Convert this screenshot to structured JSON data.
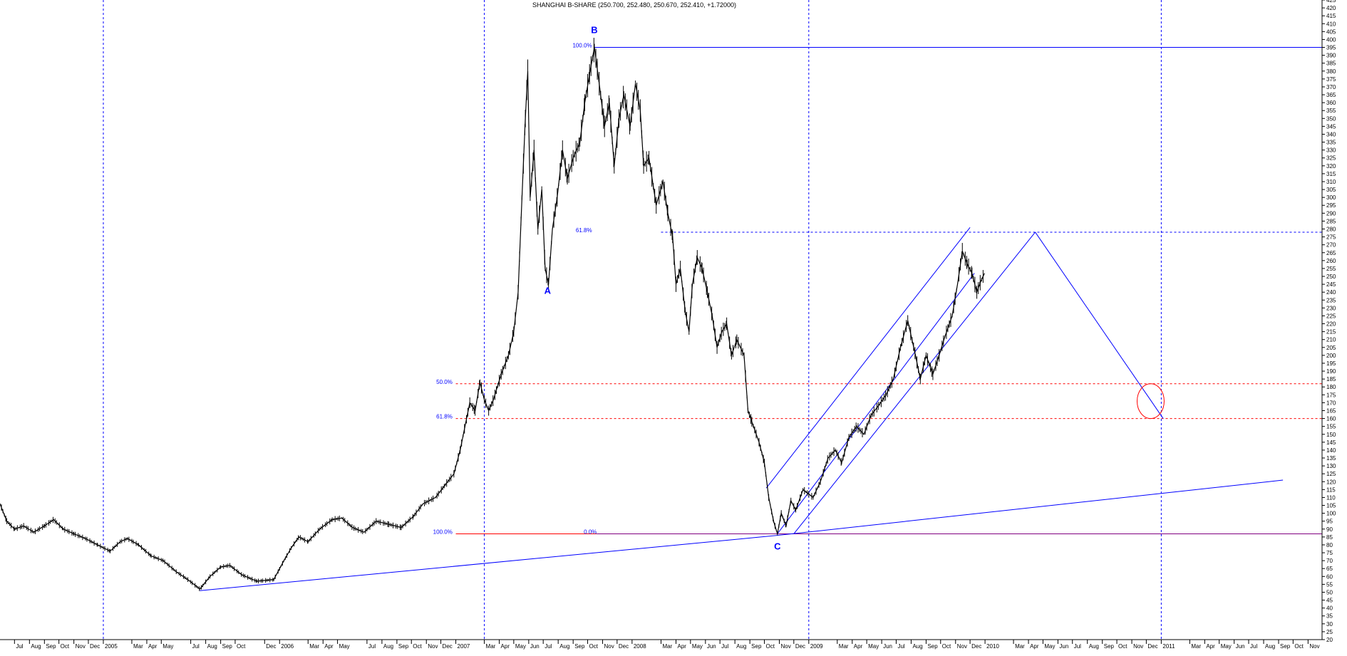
{
  "title": "SHANGHAI B-SHARE (250.700, 252.480, 250.670, 252.410, +1.72000)",
  "colors": {
    "background": "#ffffff",
    "price": "#000000",
    "trendline": "#0000ff",
    "fib_label": "#0000ff",
    "fib_red": "#ff0000",
    "base_line": "#800080",
    "axis": "#000000"
  },
  "chart_data": {
    "type": "line",
    "title": "SHANGHAI B-SHARE (250.700, 252.480, 250.670, 252.410, +1.72000)",
    "ylim": [
      20,
      425
    ],
    "y_ticks": [
      20,
      25,
      30,
      35,
      40,
      45,
      50,
      55,
      60,
      65,
      70,
      75,
      80,
      85,
      90,
      95,
      100,
      105,
      110,
      115,
      120,
      125,
      130,
      135,
      140,
      145,
      150,
      155,
      160,
      165,
      170,
      175,
      180,
      185,
      190,
      195,
      200,
      205,
      210,
      215,
      220,
      225,
      230,
      235,
      240,
      245,
      250,
      255,
      260,
      265,
      270,
      275,
      280,
      285,
      290,
      295,
      300,
      305,
      310,
      315,
      320,
      325,
      330,
      335,
      340,
      345,
      350,
      355,
      360,
      365,
      370,
      375,
      380,
      385,
      390,
      395,
      400,
      405,
      410,
      415,
      420,
      425
    ],
    "x_start": "2004-06-01",
    "x_end": "2011-11-30",
    "x_ticks": [
      {
        "date": "2004-07-01",
        "label": "Jul"
      },
      {
        "date": "2004-08-01",
        "label": "Aug"
      },
      {
        "date": "2004-09-01",
        "label": "Sep"
      },
      {
        "date": "2004-10-01",
        "label": "Oct"
      },
      {
        "date": "2004-11-01",
        "label": "Nov"
      },
      {
        "date": "2004-12-01",
        "label": "Dec"
      },
      {
        "date": "2005-01-01",
        "label": "2005"
      },
      {
        "date": "2005-03-01",
        "label": "Mar"
      },
      {
        "date": "2005-04-01",
        "label": "Apr"
      },
      {
        "date": "2005-05-01",
        "label": "May"
      },
      {
        "date": "2005-07-01",
        "label": "Jul"
      },
      {
        "date": "2005-08-01",
        "label": "Aug"
      },
      {
        "date": "2005-09-01",
        "label": "Sep"
      },
      {
        "date": "2005-10-01",
        "label": "Oct"
      },
      {
        "date": "2005-12-01",
        "label": "Dec"
      },
      {
        "date": "2006-01-01",
        "label": "2006"
      },
      {
        "date": "2006-03-01",
        "label": "Mar"
      },
      {
        "date": "2006-04-01",
        "label": "Apr"
      },
      {
        "date": "2006-05-01",
        "label": "May"
      },
      {
        "date": "2006-07-01",
        "label": "Jul"
      },
      {
        "date": "2006-08-01",
        "label": "Aug"
      },
      {
        "date": "2006-09-01",
        "label": "Sep"
      },
      {
        "date": "2006-10-01",
        "label": "Oct"
      },
      {
        "date": "2006-11-01",
        "label": "Nov"
      },
      {
        "date": "2006-12-01",
        "label": "Dec"
      },
      {
        "date": "2007-01-01",
        "label": "2007"
      },
      {
        "date": "2007-03-01",
        "label": "Mar"
      },
      {
        "date": "2007-04-01",
        "label": "Apr"
      },
      {
        "date": "2007-05-01",
        "label": "May"
      },
      {
        "date": "2007-06-01",
        "label": "Jun"
      },
      {
        "date": "2007-07-01",
        "label": "Jul"
      },
      {
        "date": "2007-08-01",
        "label": "Aug"
      },
      {
        "date": "2007-09-01",
        "label": "Sep"
      },
      {
        "date": "2007-10-01",
        "label": "Oct"
      },
      {
        "date": "2007-11-01",
        "label": "Nov"
      },
      {
        "date": "2007-12-01",
        "label": "Dec"
      },
      {
        "date": "2008-01-01",
        "label": "2008"
      },
      {
        "date": "2008-03-01",
        "label": "Mar"
      },
      {
        "date": "2008-04-01",
        "label": "Apr"
      },
      {
        "date": "2008-05-01",
        "label": "May"
      },
      {
        "date": "2008-06-01",
        "label": "Jun"
      },
      {
        "date": "2008-07-01",
        "label": "Jul"
      },
      {
        "date": "2008-08-01",
        "label": "Aug"
      },
      {
        "date": "2008-09-01",
        "label": "Sep"
      },
      {
        "date": "2008-10-01",
        "label": "Oct"
      },
      {
        "date": "2008-11-01",
        "label": "Nov"
      },
      {
        "date": "2008-12-01",
        "label": "Dec"
      },
      {
        "date": "2009-01-01",
        "label": "2009"
      },
      {
        "date": "2009-03-01",
        "label": "Mar"
      },
      {
        "date": "2009-04-01",
        "label": "Apr"
      },
      {
        "date": "2009-05-01",
        "label": "May"
      },
      {
        "date": "2009-06-01",
        "label": "Jun"
      },
      {
        "date": "2009-07-01",
        "label": "Jul"
      },
      {
        "date": "2009-08-01",
        "label": "Aug"
      },
      {
        "date": "2009-09-01",
        "label": "Sep"
      },
      {
        "date": "2009-10-01",
        "label": "Oct"
      },
      {
        "date": "2009-11-01",
        "label": "Nov"
      },
      {
        "date": "2009-12-01",
        "label": "Dec"
      },
      {
        "date": "2010-01-01",
        "label": "2010"
      },
      {
        "date": "2010-03-01",
        "label": "Mar"
      },
      {
        "date": "2010-04-01",
        "label": "Apr"
      },
      {
        "date": "2010-05-01",
        "label": "May"
      },
      {
        "date": "2010-06-01",
        "label": "Jun"
      },
      {
        "date": "2010-07-01",
        "label": "Jul"
      },
      {
        "date": "2010-08-01",
        "label": "Aug"
      },
      {
        "date": "2010-09-01",
        "label": "Sep"
      },
      {
        "date": "2010-10-01",
        "label": "Oct"
      },
      {
        "date": "2010-11-01",
        "label": "Nov"
      },
      {
        "date": "2010-12-01",
        "label": "Dec"
      },
      {
        "date": "2011-01-01",
        "label": "2011"
      },
      {
        "date": "2011-03-01",
        "label": "Mar"
      },
      {
        "date": "2011-04-01",
        "label": "Apr"
      },
      {
        "date": "2011-05-01",
        "label": "May"
      },
      {
        "date": "2011-06-01",
        "label": "Jun"
      },
      {
        "date": "2011-07-01",
        "label": "Jul"
      },
      {
        "date": "2011-08-01",
        "label": "Aug"
      },
      {
        "date": "2011-09-01",
        "label": "Sep"
      },
      {
        "date": "2011-10-01",
        "label": "Oct"
      },
      {
        "date": "2011-11-01",
        "label": "Nov"
      }
    ],
    "year_gridlines": [
      "2005-01-01",
      "2007-03-01",
      "2009-01-01",
      "2011-01-01"
    ],
    "grid": true,
    "series": [
      {
        "points": [
          [
            "2004-06-01",
            106
          ],
          [
            "2004-06-15",
            95
          ],
          [
            "2004-07-01",
            90
          ],
          [
            "2004-07-20",
            92
          ],
          [
            "2004-08-10",
            88
          ],
          [
            "2004-09-01",
            92
          ],
          [
            "2004-09-20",
            96
          ],
          [
            "2004-10-10",
            90
          ],
          [
            "2004-11-01",
            87
          ],
          [
            "2004-11-25",
            84
          ],
          [
            "2004-12-20",
            80
          ],
          [
            "2005-01-15",
            76
          ],
          [
            "2005-02-05",
            82
          ],
          [
            "2005-02-20",
            84
          ],
          [
            "2005-03-15",
            80
          ],
          [
            "2005-04-10",
            73
          ],
          [
            "2005-05-05",
            70
          ],
          [
            "2005-06-01",
            63
          ],
          [
            "2005-06-25",
            58
          ],
          [
            "2005-07-20",
            52
          ],
          [
            "2005-08-10",
            60
          ],
          [
            "2005-09-01",
            66
          ],
          [
            "2005-09-20",
            67
          ],
          [
            "2005-10-15",
            61
          ],
          [
            "2005-11-15",
            57
          ],
          [
            "2005-12-20",
            58
          ],
          [
            "2006-01-10",
            70
          ],
          [
            "2006-01-25",
            78
          ],
          [
            "2006-02-10",
            85
          ],
          [
            "2006-03-01",
            82
          ],
          [
            "2006-03-25",
            90
          ],
          [
            "2006-04-20",
            96
          ],
          [
            "2006-05-10",
            97
          ],
          [
            "2006-06-01",
            91
          ],
          [
            "2006-06-25",
            88
          ],
          [
            "2006-07-20",
            95
          ],
          [
            "2006-08-15",
            93
          ],
          [
            "2006-09-10",
            91
          ],
          [
            "2006-10-05",
            98
          ],
          [
            "2006-10-25",
            106
          ],
          [
            "2006-11-20",
            110
          ],
          [
            "2006-12-10",
            118
          ],
          [
            "2006-12-28",
            125
          ],
          [
            "2007-01-10",
            140
          ],
          [
            "2007-01-20",
            155
          ],
          [
            "2007-01-30",
            170
          ],
          [
            "2007-02-10",
            165
          ],
          [
            "2007-02-20",
            183
          ],
          [
            "2007-03-01",
            172
          ],
          [
            "2007-03-10",
            165
          ],
          [
            "2007-03-20",
            172
          ],
          [
            "2007-04-05",
            188
          ],
          [
            "2007-04-20",
            200
          ],
          [
            "2007-05-01",
            215
          ],
          [
            "2007-05-10",
            240
          ],
          [
            "2007-05-18",
            300
          ],
          [
            "2007-05-25",
            350
          ],
          [
            "2007-05-30",
            380
          ],
          [
            "2007-06-04",
            300
          ],
          [
            "2007-06-12",
            330
          ],
          [
            "2007-06-20",
            280
          ],
          [
            "2007-06-28",
            305
          ],
          [
            "2007-07-05",
            255
          ],
          [
            "2007-07-12",
            245
          ],
          [
            "2007-07-20",
            280
          ],
          [
            "2007-07-30",
            300
          ],
          [
            "2007-08-10",
            330
          ],
          [
            "2007-08-20",
            312
          ],
          [
            "2007-09-01",
            325
          ],
          [
            "2007-09-15",
            335
          ],
          [
            "2007-09-25",
            360
          ],
          [
            "2007-10-05",
            378
          ],
          [
            "2007-10-15",
            395
          ],
          [
            "2007-10-25",
            372
          ],
          [
            "2007-11-05",
            345
          ],
          [
            "2007-11-15",
            360
          ],
          [
            "2007-11-25",
            320
          ],
          [
            "2007-12-05",
            350
          ],
          [
            "2007-12-15",
            365
          ],
          [
            "2007-12-28",
            345
          ],
          [
            "2008-01-08",
            372
          ],
          [
            "2008-01-18",
            355
          ],
          [
            "2008-01-25",
            320
          ],
          [
            "2008-02-05",
            325
          ],
          [
            "2008-02-20",
            295
          ],
          [
            "2008-03-05",
            310
          ],
          [
            "2008-03-15",
            290
          ],
          [
            "2008-03-25",
            275
          ],
          [
            "2008-04-01",
            245
          ],
          [
            "2008-04-10",
            255
          ],
          [
            "2008-04-20",
            228
          ],
          [
            "2008-04-28",
            215
          ],
          [
            "2008-05-05",
            245
          ],
          [
            "2008-05-15",
            262
          ],
          [
            "2008-05-25",
            255
          ],
          [
            "2008-06-05",
            240
          ],
          [
            "2008-06-15",
            225
          ],
          [
            "2008-06-25",
            205
          ],
          [
            "2008-07-05",
            215
          ],
          [
            "2008-07-15",
            220
          ],
          [
            "2008-07-25",
            200
          ],
          [
            "2008-08-05",
            210
          ],
          [
            "2008-08-20",
            200
          ],
          [
            "2008-08-28",
            165
          ],
          [
            "2008-09-05",
            158
          ],
          [
            "2008-09-20",
            145
          ],
          [
            "2008-10-01",
            132
          ],
          [
            "2008-10-10",
            110
          ],
          [
            "2008-10-20",
            95
          ],
          [
            "2008-10-28",
            87
          ],
          [
            "2008-11-05",
            100
          ],
          [
            "2008-11-15",
            92
          ],
          [
            "2008-11-25",
            108
          ],
          [
            "2008-12-05",
            102
          ],
          [
            "2008-12-20",
            115
          ],
          [
            "2009-01-10",
            110
          ],
          [
            "2009-01-25",
            120
          ],
          [
            "2009-02-10",
            135
          ],
          [
            "2009-02-25",
            140
          ],
          [
            "2009-03-10",
            132
          ],
          [
            "2009-03-25",
            148
          ],
          [
            "2009-04-10",
            155
          ],
          [
            "2009-04-25",
            150
          ],
          [
            "2009-05-10",
            162
          ],
          [
            "2009-05-25",
            168
          ],
          [
            "2009-06-10",
            175
          ],
          [
            "2009-06-25",
            185
          ],
          [
            "2009-07-10",
            205
          ],
          [
            "2009-07-25",
            222
          ],
          [
            "2009-08-10",
            200
          ],
          [
            "2009-08-20",
            185
          ],
          [
            "2009-09-01",
            200
          ],
          [
            "2009-09-15",
            188
          ],
          [
            "2009-09-28",
            200
          ],
          [
            "2009-10-10",
            212
          ],
          [
            "2009-10-25",
            225
          ],
          [
            "2009-11-05",
            245
          ],
          [
            "2009-11-15",
            266
          ],
          [
            "2009-11-25",
            258
          ],
          [
            "2009-12-05",
            252
          ],
          [
            "2009-12-15",
            240
          ],
          [
            "2009-12-22",
            246
          ],
          [
            "2009-12-31",
            252
          ]
        ]
      }
    ],
    "annotations": [
      {
        "text": "A",
        "x": "2007-07-10",
        "y": 239
      },
      {
        "text": "B",
        "x": "2007-10-15",
        "y": 404
      },
      {
        "text": "C",
        "x": "2008-10-28",
        "y": 77
      },
      {
        "text": "100.0%",
        "x": "2007-10-10",
        "y": 395
      },
      {
        "text": "61.8%",
        "x": "2007-10-10",
        "y": 278
      },
      {
        "text": "50.0%",
        "x": "2006-12-25",
        "y": 182
      },
      {
        "text": "61.8%",
        "x": "2006-12-25",
        "y": 160
      },
      {
        "text": "100.0%",
        "x": "2006-12-25",
        "y": 87
      },
      {
        "text": "0.0%",
        "x": "2007-10-20",
        "y": 87
      }
    ],
    "horizontal_lines": [
      {
        "y": 395,
        "from": "2007-10-15",
        "to": "2011-11-30",
        "style": "solid",
        "color": "#0000ff"
      },
      {
        "y": 278,
        "from": "2008-03-01",
        "to": "2011-11-30",
        "style": "dashed",
        "color": "#0000ff"
      },
      {
        "y": 182,
        "from": "2007-01-01",
        "to": "2011-11-30",
        "style": "dashed",
        "color": "#ff0000"
      },
      {
        "y": 160,
        "from": "2007-01-01",
        "to": "2011-11-30",
        "style": "dashed",
        "color": "#ff0000"
      },
      {
        "y": 87,
        "from": "2007-01-01",
        "to": "2007-10-20",
        "style": "solid",
        "color": "#ff0000"
      },
      {
        "y": 87,
        "from": "2007-10-20",
        "to": "2011-11-30",
        "style": "solid",
        "color": "#800080"
      }
    ],
    "trend_lines": [
      {
        "from": [
          "2005-07-20",
          51
        ],
        "to": [
          "2008-10-28",
          86
        ]
      },
      {
        "from": [
          "2008-10-28",
          86
        ],
        "to": [
          "2011-09-10",
          121
        ]
      },
      {
        "from": [
          "2008-10-05",
          116
        ],
        "to": [
          "2009-12-01",
          281
        ]
      },
      {
        "from": [
          "2008-10-28",
          87
        ],
        "to": [
          "2009-12-10",
          252
        ]
      },
      {
        "from": [
          "2008-12-01",
          87
        ],
        "to": [
          "2010-04-15",
          278
        ]
      },
      {
        "from": [
          "2010-04-15",
          278
        ],
        "to": [
          "2011-01-05",
          160
        ]
      }
    ],
    "ellipse": {
      "center": [
        "2010-12-10",
        171
      ],
      "rx_days": 28,
      "ry": 11,
      "color": "#ff0000"
    }
  }
}
